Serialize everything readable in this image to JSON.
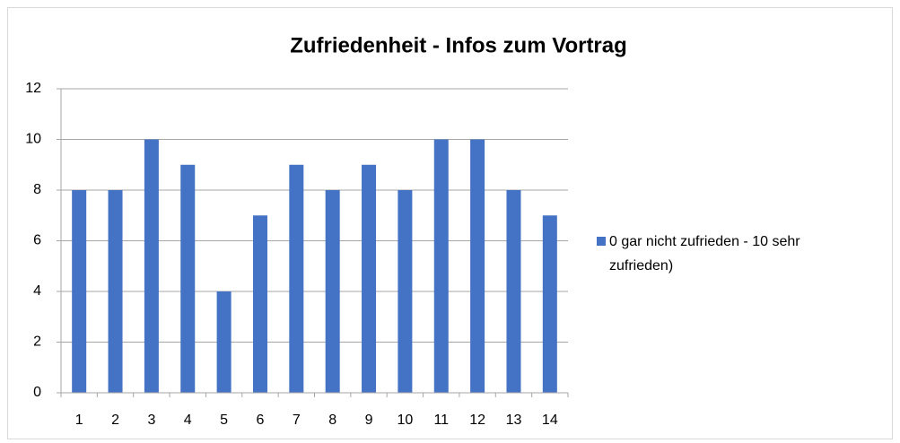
{
  "chart_data": {
    "type": "bar",
    "title": "Zufriedenheit - Infos zum Vortrag",
    "categories": [
      "1",
      "2",
      "3",
      "4",
      "5",
      "6",
      "7",
      "8",
      "9",
      "10",
      "11",
      "12",
      "13",
      "14"
    ],
    "series": [
      {
        "name": "0 gar nicht zufrieden - 10 sehr zufrieden)",
        "color": "#4472c4",
        "values": [
          8,
          8,
          10,
          9,
          4,
          7,
          9,
          8,
          9,
          8,
          10,
          10,
          8,
          7
        ]
      }
    ],
    "ylim": [
      0,
      12
    ],
    "yticks": [
      0,
      2,
      4,
      6,
      8,
      10,
      12
    ],
    "grid": true,
    "legend": "right"
  }
}
